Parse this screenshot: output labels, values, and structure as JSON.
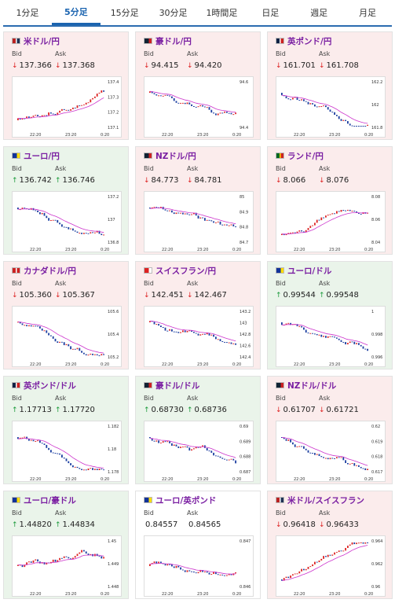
{
  "tabs": [
    "1分足",
    "5分足",
    "15分足",
    "30分足",
    "1時間足",
    "日足",
    "週足",
    "月足"
  ],
  "active_tab": 1,
  "bid_label": "Bid",
  "ask_label": "Ask",
  "cards": [
    {
      "name": "米ドル/円",
      "dir": "down",
      "bid": "137.366",
      "ask": "137.368",
      "bid_arrow": "↓",
      "ask_arrow": "↓",
      "y": [
        "137.4",
        "137.3",
        "137.2",
        "137.1"
      ],
      "trend": "up",
      "flag": "us"
    },
    {
      "name": "豪ドル/円",
      "dir": "down",
      "bid": "94.415",
      "ask": "94.420",
      "bid_arrow": "↓",
      "ask_arrow": "↓",
      "y": [
        "94.6",
        "94.4"
      ],
      "trend": "down",
      "flag": "au"
    },
    {
      "name": "英ポンド/円",
      "dir": "down",
      "bid": "161.701",
      "ask": "161.708",
      "bid_arrow": "↓",
      "ask_arrow": "↓",
      "y": [
        "162.2",
        "162",
        "161.8"
      ],
      "trend": "down",
      "flag": "uk"
    },
    {
      "name": "ユーロ/円",
      "dir": "up",
      "bid": "136.742",
      "ask": "136.746",
      "bid_arrow": "↑",
      "ask_arrow": "↑",
      "y": [
        "137.2",
        "137",
        "136.8"
      ],
      "trend": "down",
      "flag": "eu"
    },
    {
      "name": "NZドル/円",
      "dir": "down",
      "bid": "84.773",
      "ask": "84.781",
      "bid_arrow": "↓",
      "ask_arrow": "↓",
      "y": [
        "85",
        "84.9",
        "84.8",
        "84.7"
      ],
      "trend": "down",
      "flag": "nz"
    },
    {
      "name": "ランド/円",
      "dir": "down",
      "bid": "8.066",
      "ask": "8.076",
      "bid_arrow": "↓",
      "ask_arrow": "↓",
      "y": [
        "8.08",
        "8.06",
        "8.04"
      ],
      "trend": "up",
      "flag": "za"
    },
    {
      "name": "カナダドル/円",
      "dir": "down",
      "bid": "105.360",
      "ask": "105.367",
      "bid_arrow": "↓",
      "ask_arrow": "↓",
      "y": [
        "105.6",
        "105.4",
        "105.2"
      ],
      "trend": "down",
      "flag": "ca"
    },
    {
      "name": "スイスフラン/円",
      "dir": "down",
      "bid": "142.451",
      "ask": "142.467",
      "bid_arrow": "↓",
      "ask_arrow": "↓",
      "y": [
        "143.2",
        "143",
        "142.8",
        "142.6",
        "142.4"
      ],
      "trend": "down",
      "flag": "ch"
    },
    {
      "name": "ユーロ/ドル",
      "dir": "up",
      "bid": "0.99544",
      "ask": "0.99548",
      "bid_arrow": "↑",
      "ask_arrow": "↑",
      "y": [
        "1",
        "0.998",
        "0.996"
      ],
      "trend": "down",
      "flag": "eu"
    },
    {
      "name": "英ポンド/ドル",
      "dir": "up",
      "bid": "1.17713",
      "ask": "1.17720",
      "bid_arrow": "↑",
      "ask_arrow": "↑",
      "y": [
        "1.182",
        "1.18",
        "1.178"
      ],
      "trend": "down",
      "flag": "uk"
    },
    {
      "name": "豪ドル/ドル",
      "dir": "up",
      "bid": "0.68730",
      "ask": "0.68736",
      "bid_arrow": "↑",
      "ask_arrow": "↑",
      "y": [
        "0.69",
        "0.689",
        "0.688",
        "0.687"
      ],
      "trend": "down",
      "flag": "au"
    },
    {
      "name": "NZドル/ドル",
      "dir": "down",
      "bid": "0.61707",
      "ask": "0.61721",
      "bid_arrow": "↓",
      "ask_arrow": "↓",
      "y": [
        "0.62",
        "0.619",
        "0.618",
        "0.617"
      ],
      "trend": "down",
      "flag": "nz"
    },
    {
      "name": "ユーロ/豪ドル",
      "dir": "up",
      "bid": "1.44820",
      "ask": "1.44834",
      "bid_arrow": "↑",
      "ask_arrow": "↑",
      "y": [
        "1.45",
        "1.449",
        "1.448"
      ],
      "trend": "flat",
      "flag": "eu"
    },
    {
      "name": "ユーロ/英ポンド",
      "dir": "flat",
      "bid": "0.84557",
      "ask": "0.84565",
      "bid_arrow": "",
      "ask_arrow": "",
      "y": [
        "0.847",
        "0.846"
      ],
      "trend": "flat",
      "flag": "eu"
    },
    {
      "name": "米ドル/スイスフラン",
      "dir": "down",
      "bid": "0.96418",
      "ask": "0.96433",
      "bid_arrow": "↓",
      "ask_arrow": "↓",
      "y": [
        "0.964",
        "0.962",
        "0.96"
      ],
      "trend": "up",
      "flag": "us"
    }
  ],
  "x_labels": [
    "22:20",
    "23:20",
    "0:20"
  ]
}
